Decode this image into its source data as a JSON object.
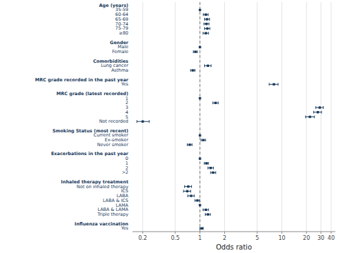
{
  "chart_data": {
    "type": "forest",
    "xlabel": "Odds ratio",
    "log": "x",
    "xlim": [
      0.15,
      45.0
    ],
    "xticks": [
      0.2,
      0.5,
      1,
      2,
      5,
      10,
      20,
      30,
      40
    ],
    "grid": true,
    "dashed_line_x": 1.0,
    "color": "#1a3a5c",
    "marker": "square",
    "groups": [
      {
        "name": "Age (years)",
        "categories": [
          "35-59",
          "60-64",
          "65-69",
          "70-74",
          "75-79",
          "≥80"
        ],
        "values": [
          1.0,
          1.18,
          1.22,
          1.2,
          1.23,
          1.18
        ],
        "lo": [
          null,
          1.1,
          1.14,
          1.12,
          1.14,
          1.09
        ],
        "hi": [
          null,
          1.26,
          1.31,
          1.29,
          1.32,
          1.27
        ]
      },
      {
        "name": "Gender",
        "categories": [
          "Male",
          "Female"
        ],
        "values": [
          1.0,
          0.88
        ],
        "lo": [
          null,
          0.83
        ],
        "hi": [
          null,
          0.93
        ]
      },
      {
        "name": "Comorbidities",
        "categories": [
          "Lung cancer",
          "Asthma"
        ],
        "values": [
          1.25,
          0.82
        ],
        "lo": [
          1.14,
          0.77
        ],
        "hi": [
          1.37,
          0.87
        ]
      },
      {
        "name": "MRC grade recorded in the past year",
        "categories": [
          "Yes"
        ],
        "values": [
          8.0
        ],
        "lo": [
          7.0
        ],
        "hi": [
          9.0
        ]
      },
      {
        "name": "MRC grade (latest recorded)",
        "categories": [
          "1",
          "2",
          "3",
          "4",
          "5",
          "Not recorded"
        ],
        "values": [
          1.0,
          1.55,
          29.0,
          27.5,
          22.0,
          0.2
        ],
        "lo": [
          null,
          1.44,
          26.0,
          24.5,
          19.5,
          0.17
        ],
        "hi": [
          null,
          1.67,
          32.0,
          30.5,
          25.0,
          0.24
        ]
      },
      {
        "name": "Smoking Status (most recent)",
        "categories": [
          "Current smoker",
          "Ex-smoker",
          "Never smoker"
        ],
        "values": [
          1.0,
          1.1,
          0.75
        ],
        "lo": [
          null,
          1.03,
          0.7
        ],
        "hi": [
          null,
          1.17,
          0.8
        ]
      },
      {
        "name": "Exacerbations in the past year",
        "categories": [
          "0",
          "1",
          "2",
          ">2"
        ],
        "values": [
          1.0,
          1.2,
          1.35,
          1.45
        ],
        "lo": [
          null,
          1.13,
          1.25,
          1.35
        ],
        "hi": [
          null,
          1.27,
          1.46,
          1.56
        ]
      },
      {
        "name": "Inhaled therapy treatment",
        "categories": [
          "Not on inhaled therapy",
          "ICS",
          "LABA",
          "LABA & ICS",
          "LAMA",
          "LABA & LAMA",
          "Triple therapy"
        ],
        "values": [
          0.72,
          0.7,
          0.78,
          0.93,
          1.0,
          1.18,
          1.25
        ],
        "lo": [
          0.65,
          0.63,
          0.71,
          0.87,
          null,
          1.09,
          1.16
        ],
        "hi": [
          0.79,
          0.77,
          0.85,
          0.99,
          null,
          1.27,
          1.34
        ]
      },
      {
        "name": "Influenza vaccination",
        "categories": [
          "Yes"
        ],
        "values": [
          1.05
        ],
        "lo": [
          1.0
        ],
        "hi": [
          1.1
        ]
      }
    ]
  }
}
